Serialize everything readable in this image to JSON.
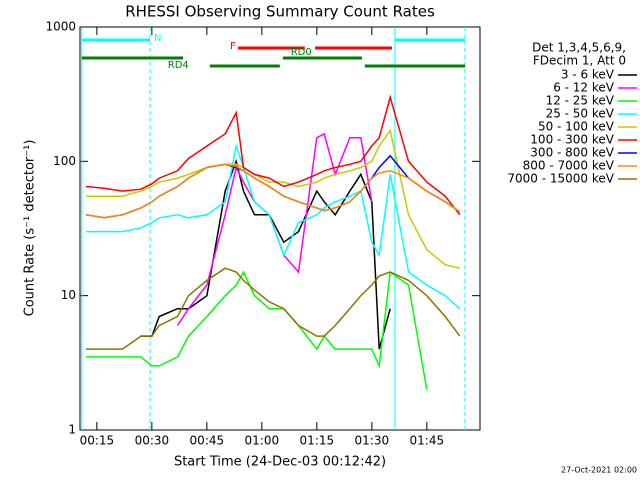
{
  "chart_data": {
    "type": "line",
    "title": "RHESSI Observing Summary Count Rates",
    "x_label": "Start Time (24-Dec-03 00:12:42)",
    "y_label": "Count Rate (s⁻¹ detector⁻¹)",
    "footer": "27-Oct-2021 02:00",
    "legend_header": [
      "Det 1,3,4,5,6,9,",
      "FDecim 1, Att 0"
    ],
    "log_y": true,
    "xlim": [
      10.4,
      119.5
    ],
    "ylim": [
      1,
      1000
    ],
    "xticks": [
      {
        "value": 15,
        "label": "00:15"
      },
      {
        "value": 30,
        "label": "00:30"
      },
      {
        "value": 45,
        "label": "00:45"
      },
      {
        "value": 60,
        "label": "01:00"
      },
      {
        "value": 75,
        "label": "01:15"
      },
      {
        "value": 90,
        "label": "01:30"
      },
      {
        "value": 105,
        "label": "01:45"
      }
    ],
    "yticks": [
      1,
      10,
      100,
      1000
    ],
    "annotations": [
      {
        "label": "N",
        "color": "#00ffff",
        "segments": [
          [
            10.9,
            29.5
          ],
          [
            96.3,
            115.4
          ]
        ]
      },
      {
        "label": "F",
        "color": "#ff0000",
        "segments": [
          [
            53.5,
            71.7
          ],
          [
            74.5,
            95.5
          ]
        ]
      },
      {
        "label": "RD0",
        "color": "#008000",
        "segments": [
          [
            10.9,
            38.5
          ],
          [
            65.7,
            87.3
          ]
        ]
      },
      {
        "label": "RD4",
        "color": "#008000",
        "segments": [
          [
            45.8,
            64.9
          ],
          [
            88.1,
            115.4
          ]
        ]
      }
    ],
    "x": [
      12,
      17,
      22,
      27,
      30,
      32,
      37,
      40,
      45,
      50,
      53,
      55,
      58,
      62,
      66,
      70,
      75,
      77,
      80,
      84,
      87,
      90,
      92,
      95,
      100,
      105,
      110,
      114
    ],
    "series": [
      {
        "name": "3 - 6 keV",
        "color": "#000000",
        "values": [
          null,
          null,
          null,
          5,
          5,
          7,
          8,
          8,
          10,
          60,
          100,
          60,
          40,
          40,
          25,
          30,
          60,
          50,
          40,
          60,
          80,
          50,
          4,
          8,
          null,
          null,
          null,
          null
        ]
      },
      {
        "name": "6 - 12 keV",
        "color": "#ff00ff",
        "values": [
          null,
          null,
          null,
          null,
          null,
          null,
          6,
          8,
          12,
          40,
          90,
          70,
          50,
          40,
          20,
          15,
          150,
          160,
          80,
          150,
          150,
          50,
          null,
          null,
          null,
          null,
          null,
          null
        ]
      },
      {
        "name": "12 - 25 keV",
        "color": "#00ff00",
        "values": [
          3.5,
          3.5,
          3.5,
          3.5,
          3,
          3,
          3.5,
          5,
          7,
          10,
          12,
          15,
          10,
          8,
          8,
          6,
          4,
          5,
          4,
          4,
          4,
          4,
          3,
          15,
          12,
          2,
          null,
          null
        ]
      },
      {
        "name": "25 - 50 keV",
        "color": "#00ffff",
        "values": [
          30,
          30,
          30,
          32,
          35,
          38,
          40,
          38,
          40,
          50,
          130,
          90,
          50,
          40,
          20,
          35,
          40,
          45,
          50,
          55,
          60,
          25,
          20,
          80,
          15,
          12,
          10,
          8
        ]
      },
      {
        "name": "50 - 100 keV",
        "color": "#c8c800",
        "values": [
          55,
          55,
          55,
          60,
          65,
          70,
          75,
          80,
          90,
          95,
          95,
          90,
          80,
          70,
          70,
          65,
          70,
          75,
          80,
          85,
          90,
          100,
          130,
          170,
          40,
          22,
          17,
          16
        ]
      },
      {
        "name": "100 - 300 keV",
        "color": "#ff0000",
        "values": [
          65,
          63,
          60,
          62,
          68,
          75,
          85,
          105,
          130,
          160,
          230,
          90,
          80,
          75,
          65,
          70,
          80,
          85,
          90,
          95,
          100,
          130,
          150,
          300,
          100,
          70,
          55,
          40
        ]
      },
      {
        "name": "300 - 800 keV",
        "color": "#0000ff",
        "values": [
          40,
          38,
          40,
          45,
          50,
          55,
          65,
          75,
          90,
          95,
          90,
          85,
          75,
          65,
          55,
          50,
          45,
          43,
          45,
          50,
          60,
          75,
          90,
          110,
          75,
          60,
          50,
          42
        ]
      },
      {
        "name": "800 - 7000 keV",
        "color": "#ff8c00",
        "values": [
          40,
          38,
          40,
          45,
          50,
          55,
          65,
          75,
          90,
          95,
          92,
          85,
          75,
          65,
          55,
          50,
          45,
          43,
          45,
          50,
          60,
          75,
          82,
          85,
          75,
          60,
          50,
          42
        ]
      },
      {
        "name": "7000 - 15000 keV",
        "color": "#8b7500",
        "values": [
          4,
          4,
          4,
          5,
          5,
          6,
          7,
          10,
          13,
          16,
          15,
          13,
          11,
          9,
          8,
          6,
          5,
          5,
          6,
          8,
          10,
          12,
          14,
          15,
          13,
          10,
          7,
          5
        ]
      }
    ]
  }
}
